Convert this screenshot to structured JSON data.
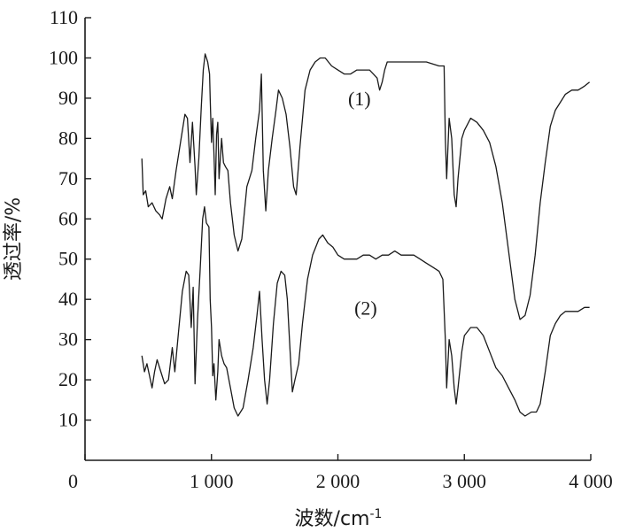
{
  "chart_data": {
    "type": "line",
    "xlabel": "波数/cm",
    "xlabel_superscript": "-1",
    "ylabel": "透过率/%",
    "xlim": [
      0,
      4000
    ],
    "ylim": [
      0,
      110
    ],
    "x_ticks": [
      0,
      1000,
      2000,
      3000,
      4000
    ],
    "x_tick_labels": [
      "0",
      "1 000",
      "2 000",
      "3 000",
      "4 000"
    ],
    "y_ticks": [
      10,
      20,
      30,
      40,
      50,
      60,
      70,
      80,
      90,
      100,
      110
    ],
    "y_tick_labels": [
      "10",
      "20",
      "30",
      "40",
      "50",
      "60",
      "70",
      "80",
      "90",
      "100",
      "110"
    ],
    "grid": false,
    "series": [
      {
        "name": "(1)",
        "label_at": [
          2170,
          90
        ],
        "points": [
          [
            450,
            75
          ],
          [
            460,
            66
          ],
          [
            480,
            67
          ],
          [
            500,
            63
          ],
          [
            530,
            64
          ],
          [
            560,
            62
          ],
          [
            590,
            61
          ],
          [
            610,
            60
          ],
          [
            640,
            65
          ],
          [
            670,
            68
          ],
          [
            690,
            65
          ],
          [
            720,
            72
          ],
          [
            760,
            80
          ],
          [
            790,
            86
          ],
          [
            810,
            85
          ],
          [
            830,
            74
          ],
          [
            850,
            84
          ],
          [
            870,
            73
          ],
          [
            880,
            66
          ],
          [
            900,
            75
          ],
          [
            920,
            88
          ],
          [
            935,
            97
          ],
          [
            950,
            101
          ],
          [
            970,
            99
          ],
          [
            985,
            96
          ],
          [
            990,
            90
          ],
          [
            1000,
            79
          ],
          [
            1010,
            85
          ],
          [
            1020,
            76
          ],
          [
            1030,
            66
          ],
          [
            1040,
            81
          ],
          [
            1050,
            84
          ],
          [
            1060,
            70
          ],
          [
            1080,
            80
          ],
          [
            1095,
            74
          ],
          [
            1110,
            73
          ],
          [
            1130,
            72
          ],
          [
            1150,
            64
          ],
          [
            1180,
            56
          ],
          [
            1210,
            52
          ],
          [
            1240,
            55
          ],
          [
            1280,
            68
          ],
          [
            1320,
            72
          ],
          [
            1350,
            80
          ],
          [
            1380,
            87
          ],
          [
            1395,
            96
          ],
          [
            1410,
            72
          ],
          [
            1430,
            62
          ],
          [
            1450,
            72
          ],
          [
            1480,
            80
          ],
          [
            1510,
            87
          ],
          [
            1530,
            92
          ],
          [
            1560,
            90
          ],
          [
            1590,
            86
          ],
          [
            1620,
            78
          ],
          [
            1650,
            68
          ],
          [
            1670,
            66
          ],
          [
            1700,
            78
          ],
          [
            1740,
            92
          ],
          [
            1780,
            97
          ],
          [
            1820,
            99
          ],
          [
            1860,
            100
          ],
          [
            1900,
            100
          ],
          [
            1950,
            98
          ],
          [
            2000,
            97
          ],
          [
            2050,
            96
          ],
          [
            2100,
            96
          ],
          [
            2150,
            97
          ],
          [
            2200,
            97
          ],
          [
            2250,
            97
          ],
          [
            2280,
            96
          ],
          [
            2310,
            95
          ],
          [
            2330,
            92
          ],
          [
            2350,
            94
          ],
          [
            2370,
            97
          ],
          [
            2390,
            99
          ],
          [
            2420,
            99
          ],
          [
            2500,
            99
          ],
          [
            2600,
            99
          ],
          [
            2700,
            99
          ],
          [
            2800,
            98
          ],
          [
            2840,
            98
          ],
          [
            2850,
            80
          ],
          [
            2860,
            70
          ],
          [
            2880,
            85
          ],
          [
            2900,
            80
          ],
          [
            2920,
            66
          ],
          [
            2935,
            63
          ],
          [
            2950,
            70
          ],
          [
            2980,
            80
          ],
          [
            3000,
            82
          ],
          [
            3050,
            85
          ],
          [
            3100,
            84
          ],
          [
            3150,
            82
          ],
          [
            3200,
            79
          ],
          [
            3250,
            73
          ],
          [
            3300,
            64
          ],
          [
            3350,
            52
          ],
          [
            3400,
            40
          ],
          [
            3440,
            35
          ],
          [
            3480,
            36
          ],
          [
            3520,
            41
          ],
          [
            3560,
            51
          ],
          [
            3600,
            64
          ],
          [
            3640,
            74
          ],
          [
            3680,
            83
          ],
          [
            3720,
            87
          ],
          [
            3760,
            89
          ],
          [
            3800,
            91
          ],
          [
            3850,
            92
          ],
          [
            3900,
            92
          ],
          [
            3950,
            93
          ],
          [
            3990,
            94
          ]
        ]
      },
      {
        "name": "(2)",
        "label_at": [
          2220,
          38
        ],
        "points": [
          [
            450,
            26
          ],
          [
            470,
            22
          ],
          [
            490,
            24
          ],
          [
            510,
            21
          ],
          [
            530,
            18
          ],
          [
            550,
            22
          ],
          [
            570,
            25
          ],
          [
            600,
            22
          ],
          [
            630,
            19
          ],
          [
            660,
            20
          ],
          [
            690,
            28
          ],
          [
            710,
            22
          ],
          [
            740,
            32
          ],
          [
            770,
            42
          ],
          [
            800,
            47
          ],
          [
            820,
            46
          ],
          [
            840,
            33
          ],
          [
            855,
            43
          ],
          [
            870,
            19
          ],
          [
            890,
            35
          ],
          [
            910,
            47
          ],
          [
            930,
            60
          ],
          [
            945,
            63
          ],
          [
            960,
            59
          ],
          [
            980,
            58
          ],
          [
            990,
            40
          ],
          [
            1000,
            33
          ],
          [
            1010,
            21
          ],
          [
            1020,
            24
          ],
          [
            1035,
            15
          ],
          [
            1050,
            22
          ],
          [
            1060,
            30
          ],
          [
            1080,
            26
          ],
          [
            1100,
            24
          ],
          [
            1120,
            23
          ],
          [
            1150,
            18
          ],
          [
            1180,
            13
          ],
          [
            1210,
            11
          ],
          [
            1250,
            13
          ],
          [
            1290,
            20
          ],
          [
            1330,
            28
          ],
          [
            1360,
            36
          ],
          [
            1380,
            42
          ],
          [
            1400,
            30
          ],
          [
            1420,
            20
          ],
          [
            1440,
            14
          ],
          [
            1460,
            20
          ],
          [
            1490,
            34
          ],
          [
            1520,
            44
          ],
          [
            1550,
            47
          ],
          [
            1580,
            46
          ],
          [
            1600,
            40
          ],
          [
            1620,
            28
          ],
          [
            1640,
            17
          ],
          [
            1660,
            20
          ],
          [
            1690,
            24
          ],
          [
            1720,
            34
          ],
          [
            1760,
            45
          ],
          [
            1800,
            51
          ],
          [
            1850,
            55
          ],
          [
            1880,
            56
          ],
          [
            1920,
            54
          ],
          [
            1960,
            53
          ],
          [
            2000,
            51
          ],
          [
            2050,
            50
          ],
          [
            2100,
            50
          ],
          [
            2150,
            50
          ],
          [
            2200,
            51
          ],
          [
            2250,
            51
          ],
          [
            2300,
            50
          ],
          [
            2350,
            51
          ],
          [
            2400,
            51
          ],
          [
            2450,
            52
          ],
          [
            2500,
            51
          ],
          [
            2550,
            51
          ],
          [
            2600,
            51
          ],
          [
            2650,
            50
          ],
          [
            2700,
            49
          ],
          [
            2750,
            48
          ],
          [
            2800,
            47
          ],
          [
            2830,
            45
          ],
          [
            2850,
            30
          ],
          [
            2860,
            18
          ],
          [
            2880,
            30
          ],
          [
            2900,
            26
          ],
          [
            2920,
            18
          ],
          [
            2935,
            14
          ],
          [
            2950,
            18
          ],
          [
            2980,
            27
          ],
          [
            3000,
            31
          ],
          [
            3050,
            33
          ],
          [
            3100,
            33
          ],
          [
            3150,
            31
          ],
          [
            3200,
            27
          ],
          [
            3250,
            23
          ],
          [
            3300,
            21
          ],
          [
            3350,
            18
          ],
          [
            3400,
            15
          ],
          [
            3440,
            12
          ],
          [
            3480,
            11
          ],
          [
            3530,
            12
          ],
          [
            3570,
            12
          ],
          [
            3600,
            14
          ],
          [
            3640,
            22
          ],
          [
            3680,
            31
          ],
          [
            3720,
            34
          ],
          [
            3760,
            36
          ],
          [
            3800,
            37
          ],
          [
            3850,
            37
          ],
          [
            3900,
            37
          ],
          [
            3950,
            38
          ],
          [
            3990,
            38
          ]
        ]
      }
    ]
  }
}
